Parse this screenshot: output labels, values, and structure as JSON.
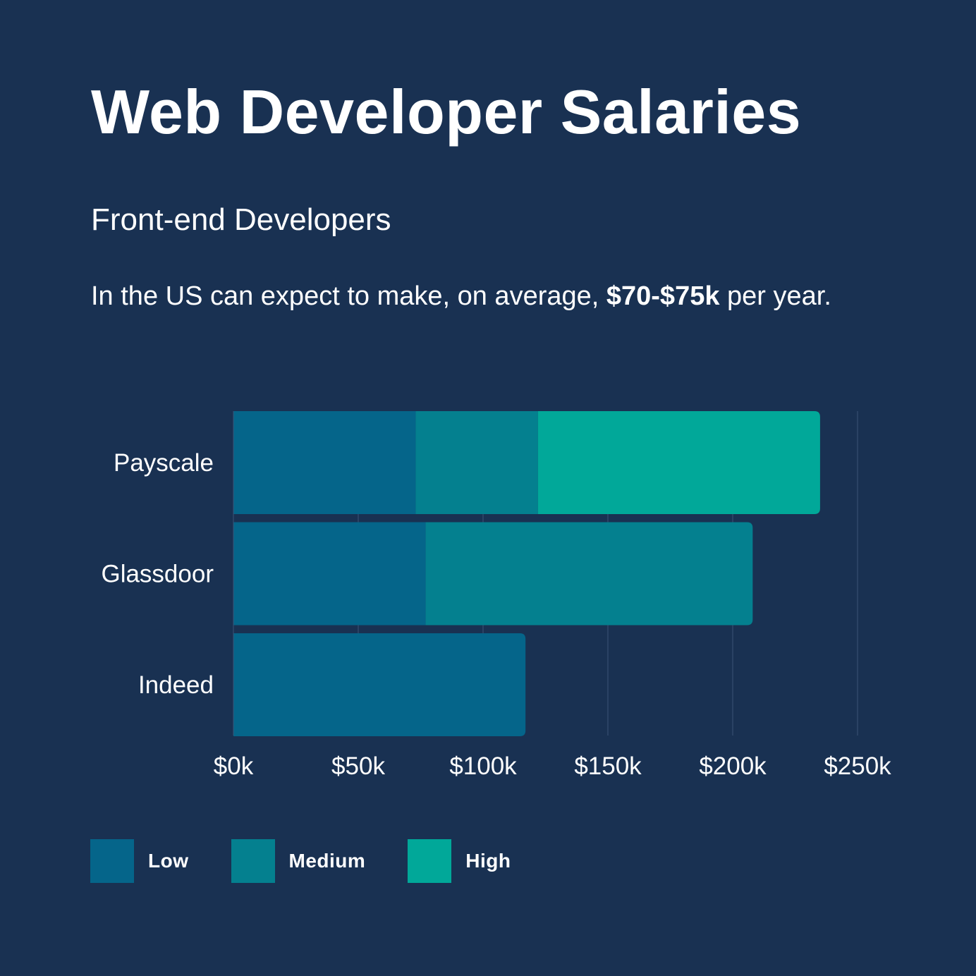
{
  "header": {
    "title": "Web Developer Salaries",
    "subtitle": "Front-end Developers",
    "description_prefix": "In the US can expect to make, on average, ",
    "description_highlight": "$70-$75k",
    "description_suffix": " per year."
  },
  "colors": {
    "background": "#193152",
    "low": "#05658A",
    "medium": "#04808F",
    "high": "#01A899",
    "gridline": "#3A5275"
  },
  "chart_data": {
    "type": "bar",
    "orientation": "horizontal",
    "stacked": true,
    "title": "Web Developer Salaries",
    "xlabel": "",
    "ylabel": "",
    "xlim": [
      0,
      250
    ],
    "x_ticks": [
      0,
      50,
      100,
      150,
      200,
      250
    ],
    "x_tick_labels": [
      "$0k",
      "$50k",
      "$100k",
      "$150k",
      "$200k",
      "$250k"
    ],
    "grid": true,
    "legend_position": "bottom-left",
    "categories": [
      "Payscale",
      "Glassdoor",
      "Indeed"
    ],
    "series": [
      {
        "name": "Low",
        "values": [
          73,
          77,
          117
        ]
      },
      {
        "name": "Medium",
        "values": [
          49,
          131,
          0
        ]
      },
      {
        "name": "High",
        "values": [
          113,
          0,
          0
        ]
      }
    ],
    "units": "thousands USD"
  },
  "legend": {
    "items": [
      {
        "label": "Low",
        "color": "#05658A"
      },
      {
        "label": "Medium",
        "color": "#04808F"
      },
      {
        "label": "High",
        "color": "#01A899"
      }
    ]
  }
}
